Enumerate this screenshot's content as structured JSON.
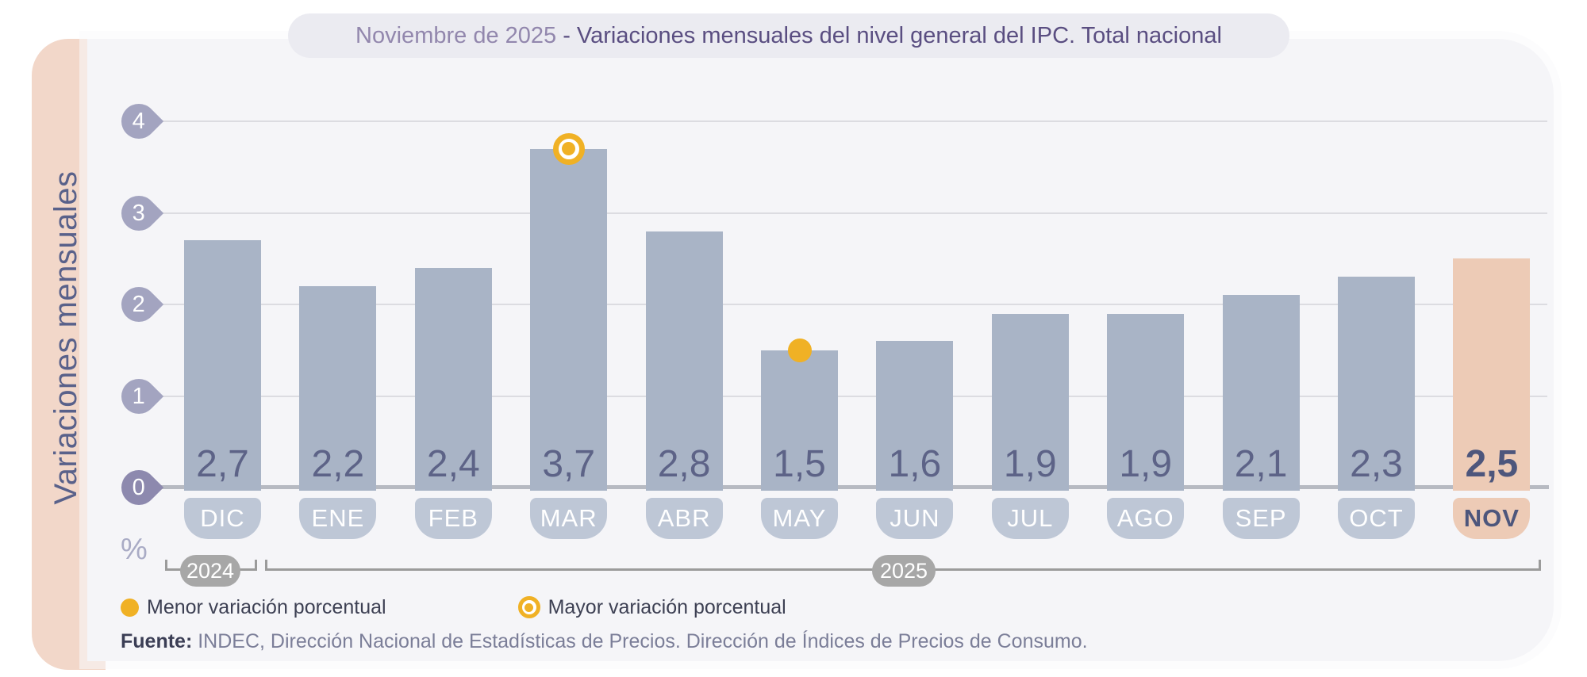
{
  "title": {
    "prefix": "Noviembre de 2025",
    "rest": " - Variaciones mensuales del nivel general del IPC. Total nacional"
  },
  "y_axis": {
    "label": "Variaciones mensuales",
    "unit": "%",
    "ticks": [
      0,
      1,
      2,
      3,
      4
    ]
  },
  "chart_data": {
    "type": "bar",
    "title": "Noviembre de 2025 - Variaciones mensuales del nivel general del IPC. Total nacional",
    "ylabel": "Variaciones mensuales",
    "xlabel": "",
    "ylim": [
      0,
      4
    ],
    "grid": true,
    "categories": [
      "DIC",
      "ENE",
      "FEB",
      "MAR",
      "ABR",
      "MAY",
      "JUN",
      "JUL",
      "AGO",
      "SEP",
      "OCT",
      "NOV"
    ],
    "values": [
      2.7,
      2.2,
      2.4,
      3.7,
      2.8,
      1.5,
      1.6,
      1.9,
      1.9,
      2.1,
      2.3,
      2.5
    ],
    "value_labels": [
      "2,7",
      "2,2",
      "2,4",
      "3,7",
      "2,8",
      "1,5",
      "1,6",
      "1,9",
      "1,9",
      "2,1",
      "2,3",
      "2,5"
    ],
    "highlighted_category": "NOV",
    "min_marker": {
      "category": "MAY",
      "value": 1.5,
      "style": "solid-dot"
    },
    "max_marker": {
      "category": "MAR",
      "value": 3.7,
      "style": "ring"
    },
    "year_groups": [
      {
        "label": "2024",
        "categories": [
          "DIC"
        ]
      },
      {
        "label": "2025",
        "categories": [
          "ENE",
          "FEB",
          "MAR",
          "ABR",
          "MAY",
          "JUN",
          "JUL",
          "AGO",
          "SEP",
          "OCT",
          "NOV"
        ]
      }
    ]
  },
  "legend": [
    {
      "marker": "solid-dot",
      "label": "Menor variación porcentual"
    },
    {
      "marker": "ring",
      "label": "Mayor variación porcentual"
    }
  ],
  "source": {
    "prefix": "Fuente:",
    "text": " INDEC, Dirección Nacional de Estadísticas de Precios. Dirección de Índices de Precios de Consumo."
  },
  "colors": {
    "accent_peach": "#f2d7c9",
    "bar": "#a9b4c6",
    "bar_highlight": "#edcbb6",
    "month_pill": "#bec7d6",
    "value_text": "#5d6387",
    "tick": "#a3a4c0",
    "tick_zero": "#8d89ae",
    "marker_yellow": "#f0b125",
    "title_prefix": "#9287ad",
    "title_rest": "#5a4e81",
    "year_pill": "#a7a7a7"
  }
}
